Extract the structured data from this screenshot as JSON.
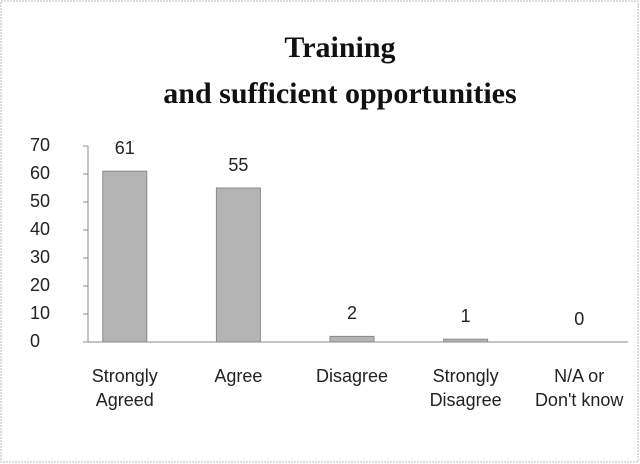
{
  "chart_data": {
    "type": "bar",
    "title": [
      "Training",
      "and sufficient opportunities"
    ],
    "categories": [
      "Strongly Agreed",
      "Agree",
      "Disagree",
      "Strongly Disagree",
      "N/A or Don't know"
    ],
    "values": [
      61,
      55,
      2,
      1,
      0
    ],
    "color": "#b4b4b4",
    "ylim": [
      0,
      70
    ],
    "yticks": [
      0,
      10,
      20,
      30,
      40,
      50,
      60,
      70
    ],
    "grid": false
  }
}
